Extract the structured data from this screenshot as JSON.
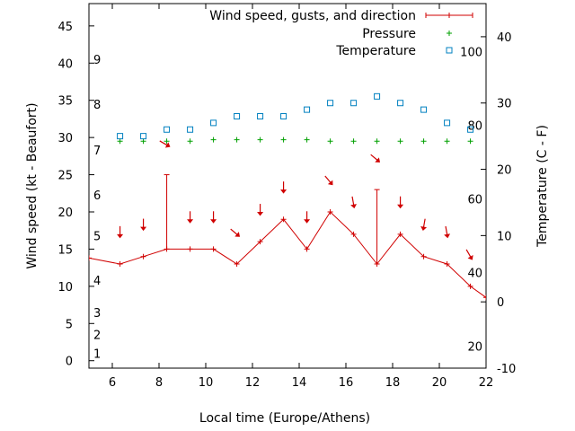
{
  "chart_data": {
    "type": "line",
    "xlabel": "Local time (Europe/Athens)",
    "ylabel": "Wind speed (kt - Beaufort)",
    "y2label": "Temperature (C - F)",
    "xlim": [
      5,
      22
    ],
    "ylim": [
      -1,
      48
    ],
    "y2lim": [
      -10,
      45
    ],
    "x_ticks": [
      "6",
      "8",
      "10",
      "12",
      "14",
      "16",
      "18",
      "20",
      "22"
    ],
    "y_ticks": [
      "0",
      "5",
      "10",
      "15",
      "20",
      "25",
      "30",
      "35",
      "40",
      "45"
    ],
    "y2_ticks": [
      "-10",
      "0",
      "10",
      "20",
      "30",
      "40"
    ],
    "beaufort_labels": [
      "1",
      "2",
      "3",
      "4",
      "5",
      "6",
      "7",
      "8",
      "9"
    ],
    "fahrenheit_labels": [
      "20",
      "40",
      "60",
      "80",
      "100"
    ],
    "legend_position": "top-right",
    "series": [
      {
        "name": "Wind speed, gusts, and direction",
        "color": "#d00000",
        "x": [
          5,
          6.33,
          7.33,
          8.33,
          9.33,
          10.33,
          11.33,
          12.33,
          13.33,
          14.33,
          15.33,
          16.33,
          17.33,
          18.33,
          19.33,
          20.33,
          21.33,
          22
        ],
        "values": [
          13.8,
          13,
          14,
          15,
          15,
          15,
          13,
          16,
          19,
          15,
          20,
          17,
          13,
          17,
          14,
          13,
          10,
          8.5
        ],
        "gusts": [
          null,
          null,
          null,
          25,
          null,
          null,
          null,
          null,
          null,
          null,
          null,
          null,
          23,
          null,
          null,
          null,
          null,
          null
        ],
        "direction_deg": [
          null,
          20,
          20,
          320,
          20,
          20,
          330,
          20,
          20,
          20,
          340,
          10,
          330,
          20,
          30,
          10,
          350,
          null
        ]
      },
      {
        "name": "Pressure",
        "color": "#00a000",
        "x": [
          6.33,
          7.33,
          8.33,
          9.33,
          10.33,
          11.33,
          12.33,
          13.33,
          14.33,
          15.33,
          16.33,
          17.33,
          18.33,
          19.33,
          20.33,
          21.33
        ],
        "values": [
          29.5,
          29.5,
          29.5,
          29.5,
          29.7,
          29.7,
          29.7,
          29.7,
          29.7,
          29.5,
          29.5,
          29.5,
          29.5,
          29.5,
          29.5,
          29.5
        ]
      },
      {
        "name": "Temperature",
        "color": "#0080c0",
        "axis": "y2",
        "x": [
          6.33,
          7.33,
          8.33,
          9.33,
          10.33,
          11.33,
          12.33,
          13.33,
          14.33,
          15.33,
          16.33,
          17.33,
          18.33,
          19.33,
          20.33,
          21.33
        ],
        "values": [
          25,
          25,
          26,
          26,
          27,
          28,
          28,
          28,
          29,
          30,
          30,
          31,
          30,
          29,
          27,
          26
        ]
      }
    ]
  }
}
